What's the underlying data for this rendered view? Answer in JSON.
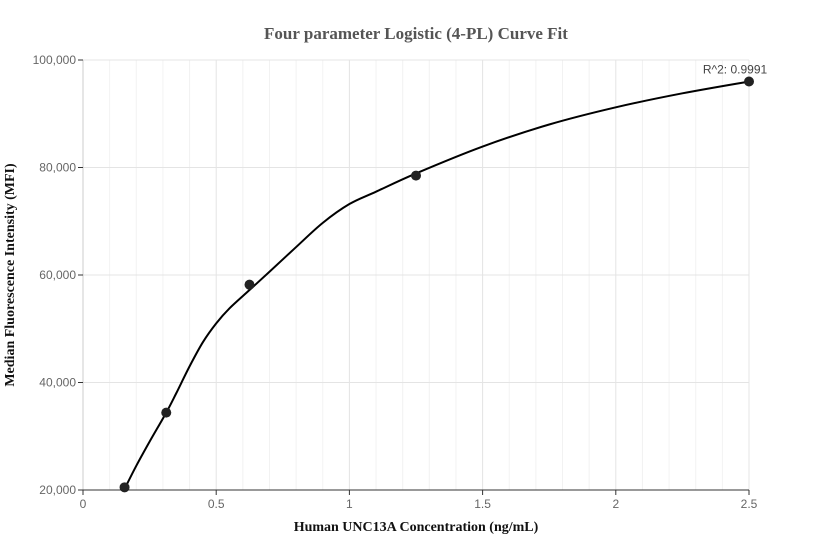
{
  "chart_data": {
    "type": "scatter",
    "title": "Four parameter Logistic (4-PL) Curve Fit",
    "xlabel": "Human UNC13A Concentration (ng/mL)",
    "ylabel": "Median Fluorescence Intensity (MFI)",
    "xlim": [
      0,
      2.5
    ],
    "ylim": [
      20000,
      100000
    ],
    "x_ticks": [
      0,
      0.5,
      1,
      1.5,
      2,
      2.5
    ],
    "x_tick_labels": [
      "0",
      "0.5",
      "1",
      "1.5",
      "2",
      "2.5"
    ],
    "y_ticks": [
      20000,
      40000,
      60000,
      80000,
      100000
    ],
    "y_tick_labels": [
      "20,000",
      "40,000",
      "60,000",
      "80,000",
      "100,000"
    ],
    "grid": true,
    "series": [
      {
        "points": [
          {
            "x": 0.156,
            "y": 20500
          },
          {
            "x": 0.3125,
            "y": 34400
          },
          {
            "x": 0.625,
            "y": 58200
          },
          {
            "x": 1.25,
            "y": 78500
          },
          {
            "x": 2.5,
            "y": 96000
          }
        ],
        "color": "#222222"
      }
    ],
    "fit_curve": {
      "color": "#000000",
      "points": [
        {
          "x": 0.156,
          "y": 20200
        },
        {
          "x": 0.2,
          "y": 24500
        },
        {
          "x": 0.25,
          "y": 29000
        },
        {
          "x": 0.3125,
          "y": 34400
        },
        {
          "x": 0.35,
          "y": 38000
        },
        {
          "x": 0.4,
          "y": 43000
        },
        {
          "x": 0.45,
          "y": 47500
        },
        {
          "x": 0.5,
          "y": 51000
        },
        {
          "x": 0.55,
          "y": 53800
        },
        {
          "x": 0.625,
          "y": 57200
        },
        {
          "x": 0.7,
          "y": 60600
        },
        {
          "x": 0.8,
          "y": 65200
        },
        {
          "x": 0.9,
          "y": 69700
        },
        {
          "x": 1.0,
          "y": 73200
        },
        {
          "x": 1.1,
          "y": 75500
        },
        {
          "x": 1.25,
          "y": 78900
        },
        {
          "x": 1.5,
          "y": 83900
        },
        {
          "x": 1.75,
          "y": 88000
        },
        {
          "x": 2.0,
          "y": 91200
        },
        {
          "x": 2.25,
          "y": 93800
        },
        {
          "x": 2.5,
          "y": 96000
        }
      ]
    },
    "annotations": [
      {
        "text": "R^2: 0.9991",
        "x": 2.5,
        "y": 96000
      }
    ]
  }
}
